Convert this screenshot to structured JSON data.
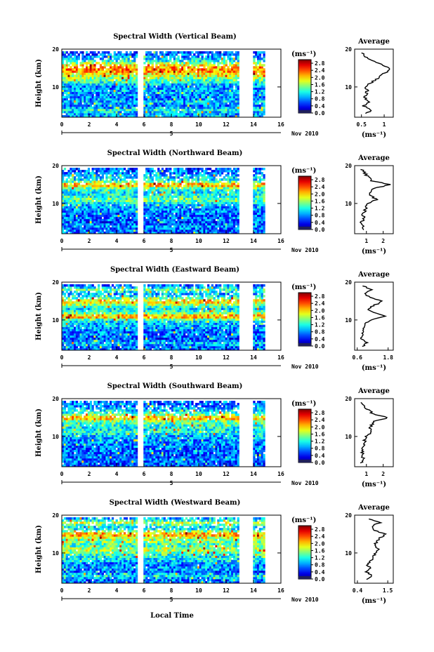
{
  "figure": {
    "xlabel": "Local Time",
    "date_label": "Nov 2010",
    "day_label": "5",
    "avg_title": "Average",
    "colorbar_unit": "(ms⁻¹)",
    "avg_unit": "(ms⁻¹)",
    "ylabel": "Height (km)"
  },
  "chart_data": [
    {
      "type": "heatmap",
      "title": "Spectral Width (Vertical Beam)",
      "ylabel": "Height (km)",
      "xlabel": "Local Time",
      "x_ticks": [
        0,
        2,
        4,
        6,
        8,
        10,
        12,
        14,
        16
      ],
      "x_range": [
        0,
        16
      ],
      "y_ticks": [
        10,
        20
      ],
      "y_range": [
        2,
        20
      ],
      "colorbar_ticks": [
        0.0,
        0.4,
        0.8,
        1.2,
        1.6,
        2.0,
        2.4,
        2.8
      ],
      "colorbar_range": [
        0.0,
        3.0
      ],
      "data_gaps_hours": [
        [
          5.5,
          6.0
        ],
        [
          12.9,
          13.9
        ],
        [
          14.9,
          16.0
        ]
      ],
      "average_profile": {
        "title": "Average",
        "xlabel": "(ms⁻¹)",
        "x_ticks": [
          0.5,
          1.0
        ],
        "x_range": [
          0.35,
          1.2
        ],
        "y_ticks": [
          10,
          20
        ],
        "heights_km": [
          3,
          4,
          5,
          6,
          7,
          8,
          9,
          10,
          11,
          12,
          13,
          14,
          15,
          16,
          17,
          18,
          19
        ],
        "values": [
          0.62,
          0.72,
          0.55,
          0.66,
          0.58,
          0.6,
          0.63,
          0.57,
          0.7,
          0.82,
          0.92,
          1.05,
          1.1,
          0.95,
          0.7,
          0.6,
          0.52
        ]
      }
    },
    {
      "type": "heatmap",
      "title": "Spectral Width (Northward Beam)",
      "ylabel": "Height (km)",
      "xlabel": "Local Time",
      "x_ticks": [
        0,
        2,
        4,
        6,
        8,
        10,
        12,
        14,
        16
      ],
      "x_range": [
        0,
        16
      ],
      "y_ticks": [
        10,
        20
      ],
      "y_range": [
        2,
        20
      ],
      "colorbar_ticks": [
        0.0,
        0.4,
        0.8,
        1.2,
        1.6,
        2.0,
        2.4,
        2.8
      ],
      "colorbar_range": [
        0.0,
        3.0
      ],
      "data_gaps_hours": [
        [
          5.5,
          6.0
        ],
        [
          12.9,
          13.9
        ],
        [
          14.9,
          16.0
        ]
      ],
      "average_profile": {
        "title": "Average",
        "xlabel": "(ms⁻¹)",
        "x_ticks": [
          1,
          2
        ],
        "x_range": [
          0.3,
          2.6
        ],
        "y_ticks": [
          10,
          20
        ],
        "heights_km": [
          3,
          4,
          5,
          6,
          7,
          8,
          9,
          10,
          11,
          12,
          13,
          14,
          15,
          16,
          17,
          18,
          19
        ],
        "values": [
          0.75,
          0.9,
          0.7,
          0.85,
          0.8,
          0.9,
          1.0,
          1.1,
          1.6,
          1.3,
          1.2,
          1.5,
          2.4,
          1.3,
          1.1,
          0.9,
          0.7
        ]
      }
    },
    {
      "type": "heatmap",
      "title": "Spectral Width (Eastward Beam)",
      "ylabel": "Height (km)",
      "xlabel": "Local Time",
      "x_ticks": [
        0,
        2,
        4,
        6,
        8,
        10,
        12,
        14,
        16
      ],
      "x_range": [
        0,
        16
      ],
      "y_ticks": [
        10,
        20
      ],
      "y_range": [
        2,
        20
      ],
      "colorbar_ticks": [
        0.0,
        0.4,
        0.8,
        1.2,
        1.6,
        2.0,
        2.4,
        2.8
      ],
      "colorbar_range": [
        0.0,
        3.0
      ],
      "data_gaps_hours": [
        [
          5.5,
          6.0
        ],
        [
          12.9,
          13.9
        ],
        [
          14.9,
          16.0
        ]
      ],
      "average_profile": {
        "title": "Average",
        "xlabel": "(ms⁻¹)",
        "x_ticks": [
          0.6,
          1.8
        ],
        "x_range": [
          0.5,
          2.0
        ],
        "y_ticks": [
          10,
          20
        ],
        "heights_km": [
          3,
          4,
          5,
          6,
          7,
          8,
          9,
          10,
          11,
          12,
          13,
          14,
          15,
          16,
          17,
          18,
          19
        ],
        "values": [
          0.8,
          0.95,
          0.75,
          0.85,
          0.8,
          0.9,
          0.95,
          1.1,
          1.7,
          1.2,
          1.0,
          1.3,
          1.6,
          1.1,
          0.9,
          1.2,
          0.8
        ]
      }
    },
    {
      "type": "heatmap",
      "title": "Spectral Width (Southward Beam)",
      "ylabel": "Height (km)",
      "xlabel": "Local Time",
      "x_ticks": [
        0,
        2,
        4,
        6,
        8,
        10,
        12,
        14,
        16
      ],
      "x_range": [
        0,
        16
      ],
      "y_ticks": [
        10,
        20
      ],
      "y_range": [
        2,
        20
      ],
      "colorbar_ticks": [
        0.0,
        0.4,
        0.8,
        1.2,
        1.6,
        2.0,
        2.4,
        2.8
      ],
      "colorbar_range": [
        0.0,
        3.0
      ],
      "data_gaps_hours": [
        [
          5.5,
          6.0
        ],
        [
          12.9,
          13.9
        ],
        [
          14.9,
          16.0
        ]
      ],
      "average_profile": {
        "title": "Average",
        "xlabel": "(ms⁻¹)",
        "x_ticks": [
          1,
          2
        ],
        "x_range": [
          0.3,
          2.6
        ],
        "y_ticks": [
          10,
          20
        ],
        "heights_km": [
          3,
          4,
          5,
          6,
          7,
          8,
          9,
          10,
          11,
          12,
          13,
          14,
          15,
          16,
          17,
          18,
          19
        ],
        "values": [
          0.7,
          0.85,
          0.7,
          0.8,
          0.75,
          0.85,
          0.9,
          1.0,
          1.3,
          1.2,
          1.3,
          1.5,
          2.3,
          1.4,
          1.1,
          0.9,
          0.75
        ]
      }
    },
    {
      "type": "heatmap",
      "title": "Spectral Width (Westward Beam)",
      "ylabel": "Height (km)",
      "xlabel": "Local Time",
      "x_ticks": [
        0,
        2,
        4,
        6,
        8,
        10,
        12,
        14,
        16
      ],
      "x_range": [
        0,
        16
      ],
      "y_ticks": [
        10,
        20
      ],
      "y_range": [
        2,
        20
      ],
      "colorbar_ticks": [
        0.0,
        0.4,
        0.8,
        1.2,
        1.6,
        2.0,
        2.4,
        2.8
      ],
      "colorbar_range": [
        0.0,
        3.0
      ],
      "data_gaps_hours": [
        [
          5.5,
          6.0
        ],
        [
          12.9,
          13.9
        ],
        [
          14.9,
          16.0
        ]
      ],
      "average_profile": {
        "title": "Average",
        "xlabel": "(ms⁻¹)",
        "x_ticks": [
          0.4,
          1.5
        ],
        "x_range": [
          0.3,
          1.7
        ],
        "y_ticks": [
          10,
          20
        ],
        "heights_km": [
          3,
          4,
          5,
          6,
          7,
          8,
          9,
          10,
          11,
          12,
          13,
          14,
          15,
          16,
          17,
          18,
          19
        ],
        "values": [
          0.75,
          0.95,
          0.7,
          0.85,
          0.75,
          0.9,
          0.95,
          1.05,
          1.2,
          1.0,
          1.1,
          1.2,
          1.45,
          1.0,
          0.9,
          1.2,
          0.85
        ]
      }
    }
  ]
}
